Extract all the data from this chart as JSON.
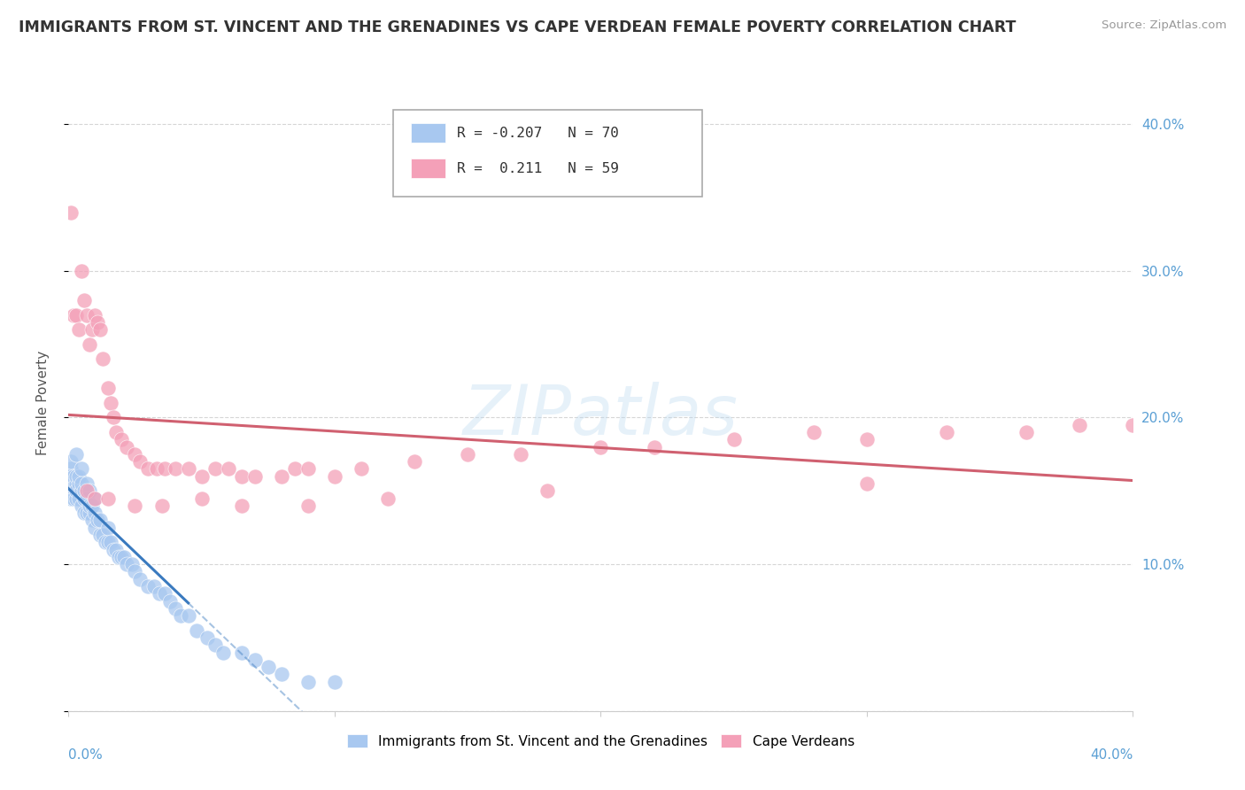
{
  "title": "IMMIGRANTS FROM ST. VINCENT AND THE GRENADINES VS CAPE VERDEAN FEMALE POVERTY CORRELATION CHART",
  "source": "Source: ZipAtlas.com",
  "ylabel": "Female Poverty",
  "blue_label": "Immigrants from St. Vincent and the Grenadines",
  "pink_label": "Cape Verdeans",
  "blue_R": -0.207,
  "blue_N": 70,
  "pink_R": 0.211,
  "pink_N": 59,
  "watermark": "ZIPatlas",
  "blue_color": "#a8c8f0",
  "pink_color": "#f4a0b8",
  "blue_line_color": "#3a7abf",
  "pink_line_color": "#d06070",
  "blue_scatter_x": [
    0.001,
    0.001,
    0.001,
    0.001,
    0.001,
    0.002,
    0.002,
    0.002,
    0.002,
    0.003,
    0.003,
    0.003,
    0.003,
    0.003,
    0.004,
    0.004,
    0.004,
    0.005,
    0.005,
    0.005,
    0.005,
    0.006,
    0.006,
    0.006,
    0.007,
    0.007,
    0.007,
    0.008,
    0.008,
    0.008,
    0.009,
    0.009,
    0.01,
    0.01,
    0.01,
    0.011,
    0.012,
    0.012,
    0.013,
    0.014,
    0.015,
    0.015,
    0.016,
    0.017,
    0.018,
    0.019,
    0.02,
    0.021,
    0.022,
    0.024,
    0.025,
    0.027,
    0.03,
    0.032,
    0.034,
    0.036,
    0.038,
    0.04,
    0.042,
    0.045,
    0.048,
    0.052,
    0.055,
    0.058,
    0.065,
    0.07,
    0.075,
    0.08,
    0.09,
    0.1
  ],
  "blue_scatter_y": [
    0.155,
    0.145,
    0.16,
    0.165,
    0.17,
    0.15,
    0.155,
    0.145,
    0.16,
    0.145,
    0.155,
    0.15,
    0.16,
    0.175,
    0.145,
    0.155,
    0.16,
    0.14,
    0.15,
    0.155,
    0.165,
    0.135,
    0.145,
    0.15,
    0.135,
    0.145,
    0.155,
    0.135,
    0.14,
    0.15,
    0.13,
    0.14,
    0.125,
    0.135,
    0.145,
    0.13,
    0.12,
    0.13,
    0.12,
    0.115,
    0.115,
    0.125,
    0.115,
    0.11,
    0.11,
    0.105,
    0.105,
    0.105,
    0.1,
    0.1,
    0.095,
    0.09,
    0.085,
    0.085,
    0.08,
    0.08,
    0.075,
    0.07,
    0.065,
    0.065,
    0.055,
    0.05,
    0.045,
    0.04,
    0.04,
    0.035,
    0.03,
    0.025,
    0.02,
    0.02
  ],
  "pink_scatter_x": [
    0.001,
    0.002,
    0.003,
    0.004,
    0.005,
    0.006,
    0.007,
    0.008,
    0.009,
    0.01,
    0.011,
    0.012,
    0.013,
    0.015,
    0.016,
    0.017,
    0.018,
    0.02,
    0.022,
    0.025,
    0.027,
    0.03,
    0.033,
    0.036,
    0.04,
    0.045,
    0.05,
    0.055,
    0.06,
    0.065,
    0.07,
    0.08,
    0.085,
    0.09,
    0.1,
    0.11,
    0.13,
    0.15,
    0.17,
    0.2,
    0.22,
    0.25,
    0.28,
    0.3,
    0.33,
    0.36,
    0.38,
    0.4,
    0.007,
    0.01,
    0.015,
    0.025,
    0.035,
    0.05,
    0.065,
    0.09,
    0.12,
    0.18,
    0.3
  ],
  "pink_scatter_y": [
    0.34,
    0.27,
    0.27,
    0.26,
    0.3,
    0.28,
    0.27,
    0.25,
    0.26,
    0.27,
    0.265,
    0.26,
    0.24,
    0.22,
    0.21,
    0.2,
    0.19,
    0.185,
    0.18,
    0.175,
    0.17,
    0.165,
    0.165,
    0.165,
    0.165,
    0.165,
    0.16,
    0.165,
    0.165,
    0.16,
    0.16,
    0.16,
    0.165,
    0.165,
    0.16,
    0.165,
    0.17,
    0.175,
    0.175,
    0.18,
    0.18,
    0.185,
    0.19,
    0.185,
    0.19,
    0.19,
    0.195,
    0.195,
    0.15,
    0.145,
    0.145,
    0.14,
    0.14,
    0.145,
    0.14,
    0.14,
    0.145,
    0.15,
    0.155
  ],
  "xlim": [
    0.0,
    0.4
  ],
  "ylim": [
    0.0,
    0.42
  ],
  "xticks": [
    0.0,
    0.1,
    0.2,
    0.3,
    0.4
  ],
  "yticks": [
    0.0,
    0.1,
    0.2,
    0.3,
    0.4
  ],
  "ytick_labels": [
    "",
    "10.0%",
    "20.0%",
    "30.0%",
    "40.0%"
  ],
  "background": "#ffffff",
  "grid_color": "#cccccc",
  "title_color": "#333333",
  "source_color": "#999999",
  "ylabel_color": "#555555",
  "tick_color": "#5a9fd4"
}
